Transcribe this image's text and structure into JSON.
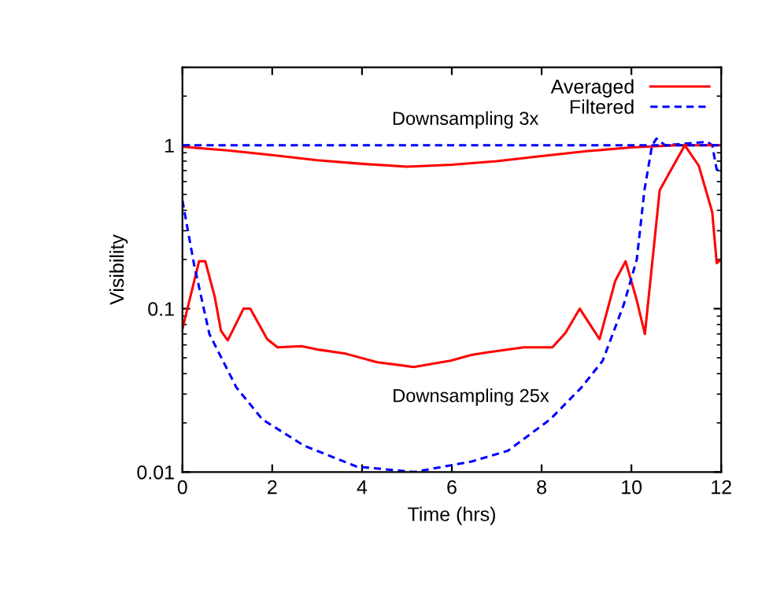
{
  "chart_data": {
    "type": "line",
    "xlabel": "Time (hrs)",
    "ylabel": "Visibility",
    "log": "y",
    "xlim": [
      0,
      12
    ],
    "ylim": [
      0.01,
      3
    ],
    "xticks": [
      0,
      2,
      4,
      6,
      8,
      10,
      12
    ],
    "yticks": [
      {
        "value": 0.01,
        "label": "0.01"
      },
      {
        "value": 0.1,
        "label": "0.1"
      },
      {
        "value": 1,
        "label": "1"
      }
    ],
    "grid": false,
    "legend": "top right",
    "marker": "none",
    "series": [
      {
        "name": "Averaged",
        "color": "#ff0000",
        "line_style": "solid",
        "x": [
          0,
          0.37,
          0.51,
          0.72,
          0.86,
          1.01,
          1.36,
          1.51,
          1.89,
          2.12,
          2.65,
          3.05,
          3.64,
          4.34,
          5.15,
          5.97,
          6.43,
          6.78,
          7.6,
          8.24,
          8.53,
          8.85,
          9.29,
          9.64,
          9.87,
          10.1,
          10.3,
          10.63,
          10.86,
          11.19,
          11.5,
          11.8,
          11.9,
          12
        ],
        "values": [
          0.075,
          0.195,
          0.195,
          0.118,
          0.073,
          0.064,
          0.1,
          0.1,
          0.065,
          0.058,
          0.059,
          0.056,
          0.053,
          0.047,
          0.044,
          0.048,
          0.052,
          0.054,
          0.058,
          0.058,
          0.071,
          0.1,
          0.065,
          0.148,
          0.195,
          0.118,
          0.07,
          0.53,
          0.69,
          1.0,
          0.75,
          0.39,
          0.19,
          0.2
        ]
      },
      {
        "name": "Filtered",
        "color": "#0000ff",
        "line_style": "dashed",
        "x": [
          0,
          0.26,
          0.6,
          1.2,
          1.78,
          2.71,
          3.88,
          5.16,
          6.44,
          7.25,
          8.19,
          8.89,
          9.36,
          9.83,
          10.12,
          10.29,
          10.46,
          10.56,
          10.75,
          11.69,
          11.8,
          11.9,
          12
        ],
        "values": [
          0.46,
          0.186,
          0.07,
          0.033,
          0.021,
          0.0145,
          0.0108,
          0.01,
          0.0116,
          0.0135,
          0.021,
          0.033,
          0.048,
          0.106,
          0.2,
          0.53,
          1.0,
          1.1,
          1.0,
          1.05,
          1.0,
          0.71,
          0.7
        ]
      },
      {
        "color": "#ff0000",
        "line_style": "solid",
        "x": [
          0,
          1,
          2,
          3,
          4,
          5,
          6,
          7,
          8,
          9,
          10,
          11,
          12
        ],
        "values": [
          0.98,
          0.93,
          0.87,
          0.81,
          0.77,
          0.74,
          0.76,
          0.8,
          0.86,
          0.92,
          0.97,
          1.0,
          1.0
        ]
      },
      {
        "color": "#0000ff",
        "line_style": "dashed",
        "x": [
          0,
          12
        ],
        "values": [
          1,
          1
        ]
      }
    ],
    "annotations": [
      "Downsampling 3x",
      "Downsampling 25x"
    ]
  }
}
